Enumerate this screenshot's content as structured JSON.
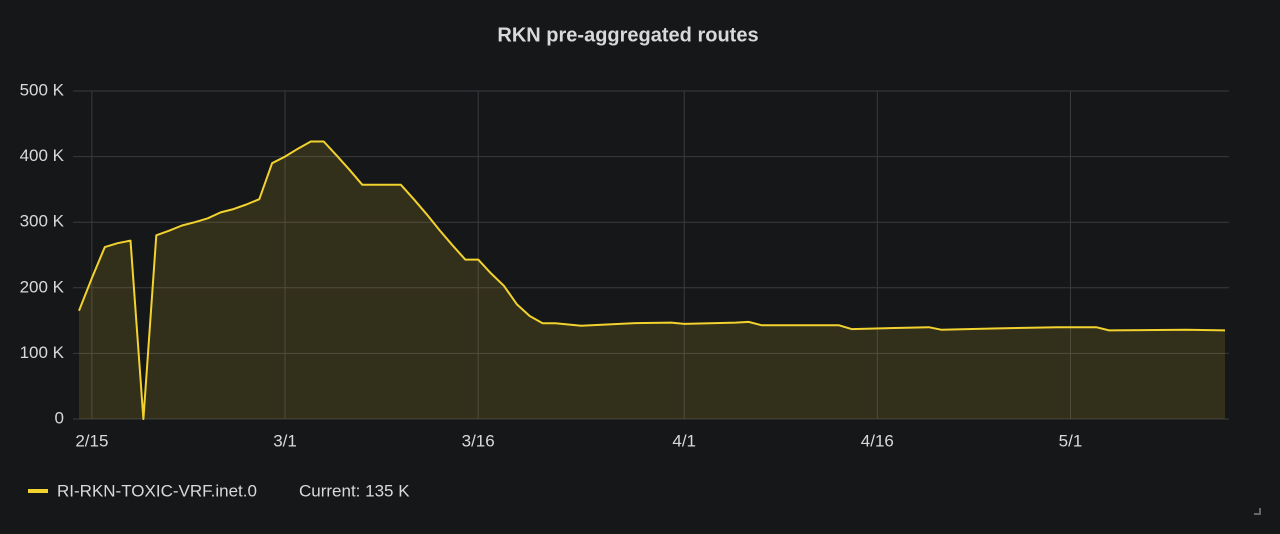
{
  "chart_data": {
    "type": "line",
    "title": "RKN pre-aggregated routes",
    "x": [
      "2/14",
      "2/15",
      "2/16",
      "2/17",
      "2/18",
      "2/19",
      "2/20",
      "2/21",
      "2/22",
      "2/23",
      "2/24",
      "2/25",
      "2/26",
      "2/27",
      "2/28",
      "2/29",
      "3/1",
      "3/2",
      "3/3",
      "3/4",
      "3/5",
      "3/6",
      "3/7",
      "3/8",
      "3/9",
      "3/10",
      "3/11",
      "3/12",
      "3/13",
      "3/14",
      "3/15",
      "3/16",
      "3/17",
      "3/18",
      "3/19",
      "3/20",
      "3/21",
      "3/22",
      "3/24",
      "3/26",
      "3/28",
      "3/31",
      "4/1",
      "4/5",
      "4/6",
      "4/7",
      "4/13",
      "4/14",
      "4/20",
      "4/21",
      "4/25",
      "4/30",
      "5/3",
      "5/4",
      "5/10",
      "5/13"
    ],
    "series": [
      {
        "name": "RI-RKN-TOXIC-VRF.inet.0",
        "color": "#f2d22e",
        "values": [
          165000,
          215000,
          262000,
          268000,
          272000,
          0,
          280000,
          287000,
          295000,
          300000,
          306000,
          315000,
          320000,
          327000,
          335000,
          390000,
          400000,
          412000,
          423000,
          423000,
          402000,
          380000,
          357000,
          357000,
          357000,
          357000,
          335000,
          312000,
          288000,
          265000,
          243000,
          243000,
          222000,
          203000,
          175000,
          157000,
          146000,
          146000,
          142000,
          144000,
          146000,
          147000,
          145000,
          147000,
          148000,
          143000,
          143000,
          137000,
          140000,
          136000,
          138000,
          140000,
          140000,
          135000,
          136000,
          135000
        ]
      }
    ],
    "legend_current": "Current: 135 K",
    "xlim": [
      "2/14",
      "5/13"
    ],
    "xticks": [
      "2/15",
      "3/1",
      "3/16",
      "4/1",
      "4/16",
      "5/1"
    ],
    "ylim": [
      0,
      500000
    ],
    "yticks": [
      0,
      {
        "value": 100000,
        "label": "100 K"
      },
      {
        "value": 200000,
        "label": "200 K"
      },
      {
        "value": 300000,
        "label": "300 K"
      },
      {
        "value": 400000,
        "label": "400 K"
      },
      {
        "value": 500000,
        "label": "500 K"
      }
    ],
    "grid": true
  }
}
